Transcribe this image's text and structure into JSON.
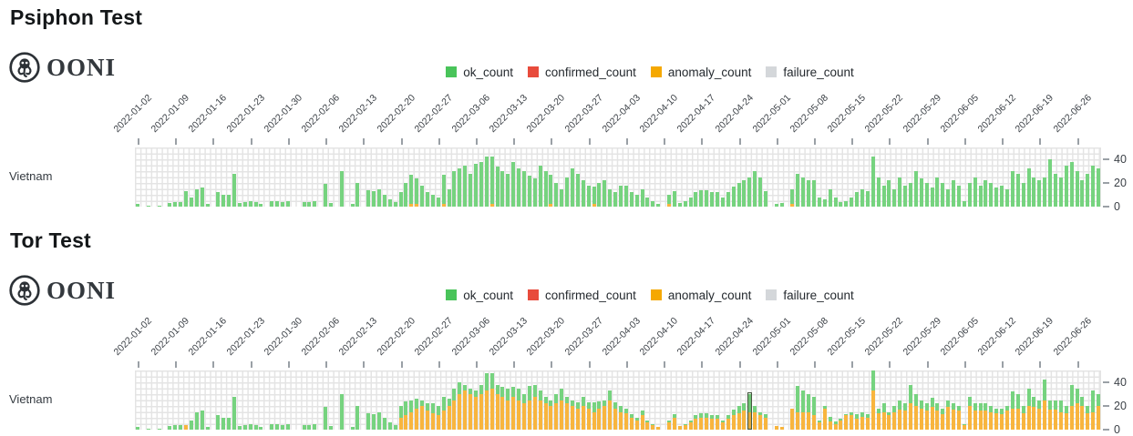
{
  "logo": {
    "text": "OONI",
    "icon": "ooni-octopus-icon"
  },
  "sections": [
    {
      "title": "Psiphon Test",
      "row_label": "Vietnam"
    },
    {
      "title": "Tor Test",
      "row_label": "Vietnam"
    }
  ],
  "legend": {
    "items": [
      {
        "label": "ok_count",
        "color": "#49c45a"
      },
      {
        "label": "confirmed_count",
        "color": "#e84b3c"
      },
      {
        "label": "anomaly_count",
        "color": "#f5a800"
      },
      {
        "label": "failure_count",
        "color": "#d4d7da"
      }
    ]
  },
  "chart_data": [
    {
      "type": "bar",
      "stacked": true,
      "stack_order": "bottom-to-top",
      "title": "Psiphon Test",
      "row_label": "Vietnam",
      "x_unit": "day",
      "x_range": [
        "2022-01-02",
        "2022-06-30"
      ],
      "x_tick_labels": [
        "2022-01-02",
        "2022-01-09",
        "2022-01-16",
        "2022-01-23",
        "2022-01-30",
        "2022-02-06",
        "2022-02-13",
        "2022-02-20",
        "2022-02-27",
        "2022-03-06",
        "2022-03-13",
        "2022-03-20",
        "2022-03-27",
        "2022-04-03",
        "2022-04-10",
        "2022-04-17",
        "2022-04-24",
        "2022-05-01",
        "2022-05-08",
        "2022-05-15",
        "2022-05-22",
        "2022-05-29",
        "2022-06-05",
        "2022-06-12",
        "2022-06-19",
        "2022-06-26"
      ],
      "y_ticks": [
        0,
        20,
        40
      ],
      "ylim": [
        0,
        50
      ],
      "y_axis_side": "right",
      "x_axis_side": "top",
      "grid": true,
      "notes": "confirmed_count and failure_count series have no visible bars in this chart",
      "series": [
        {
          "name": "anomaly_count",
          "color": "#f8b53e",
          "length": 180,
          "default": 0,
          "points": {
            "51": 2,
            "52": 2,
            "57": 2,
            "66": 2,
            "77": 2,
            "85": 2,
            "99": 2,
            "122": 2
          }
        },
        {
          "name": "ok_count",
          "color": "#76d37f",
          "values": [
            2,
            0,
            1,
            0,
            1,
            0,
            3,
            4,
            4,
            13,
            8,
            15,
            16,
            2,
            0,
            12,
            10,
            10,
            28,
            3,
            4,
            5,
            4,
            2,
            0,
            5,
            5,
            4,
            5,
            0,
            0,
            4,
            4,
            5,
            0,
            19,
            3,
            0,
            30,
            0,
            2,
            20,
            0,
            14,
            13,
            15,
            10,
            6,
            4,
            12,
            20,
            25,
            22,
            18,
            12,
            10,
            8,
            25,
            15,
            30,
            32,
            35,
            28,
            36,
            38,
            42,
            40,
            34,
            30,
            28,
            38,
            32,
            30,
            26,
            24,
            35,
            30,
            25,
            20,
            15,
            25,
            32,
            28,
            22,
            18,
            15,
            20,
            22,
            15,
            12,
            18,
            18,
            12,
            10,
            15,
            8,
            5,
            2,
            0,
            8,
            13,
            3,
            5,
            8,
            12,
            14,
            14,
            12,
            12,
            8,
            12,
            17,
            20,
            22,
            25,
            30,
            25,
            13,
            0,
            2,
            3,
            0,
            13,
            28,
            25,
            22,
            22,
            8,
            6,
            15,
            8,
            4,
            5,
            8,
            12,
            15,
            13,
            42,
            25,
            18,
            22,
            15,
            25,
            18,
            20,
            30,
            24,
            20,
            16,
            25,
            20,
            15,
            22,
            18,
            5,
            20,
            25,
            18,
            22,
            20,
            16,
            18,
            15,
            30,
            28,
            20,
            32,
            25,
            22,
            25,
            40,
            28,
            25,
            35,
            38,
            30,
            22,
            28,
            35,
            32
          ]
        }
      ]
    },
    {
      "type": "bar",
      "stacked": true,
      "stack_order": "bottom-to-top",
      "title": "Tor Test",
      "row_label": "Vietnam",
      "x_unit": "day",
      "x_range": [
        "2022-01-02",
        "2022-06-30"
      ],
      "x_tick_labels": [
        "2022-01-02",
        "2022-01-09",
        "2022-01-16",
        "2022-01-23",
        "2022-01-30",
        "2022-02-06",
        "2022-02-13",
        "2022-02-20",
        "2022-02-27",
        "2022-03-06",
        "2022-03-13",
        "2022-03-20",
        "2022-03-27",
        "2022-04-03",
        "2022-04-10",
        "2022-04-17",
        "2022-04-24",
        "2022-05-01",
        "2022-05-08",
        "2022-05-15",
        "2022-05-22",
        "2022-05-29",
        "2022-06-05",
        "2022-06-12",
        "2022-06-19",
        "2022-06-26"
      ],
      "y_ticks": [
        0,
        20,
        40
      ],
      "ylim": [
        0,
        50
      ],
      "y_axis_side": "right",
      "x_axis_side": "top",
      "grid": true,
      "selected_index": 114,
      "notes": "confirmed_count and failure_count series have no visible bars in this chart; one bar (index 114) is highlighted with a dark outline",
      "series": [
        {
          "name": "anomaly_count",
          "color": "#f8b53e",
          "values": [
            0,
            0,
            0,
            0,
            0,
            0,
            0,
            0,
            0,
            4,
            0,
            0,
            0,
            0,
            0,
            0,
            0,
            0,
            0,
            0,
            0,
            0,
            0,
            0,
            0,
            0,
            0,
            0,
            0,
            0,
            0,
            0,
            0,
            0,
            0,
            0,
            0,
            0,
            0,
            0,
            0,
            0,
            0,
            0,
            0,
            0,
            0,
            0,
            0,
            10,
            12,
            15,
            18,
            20,
            16,
            14,
            12,
            16,
            20,
            25,
            30,
            33,
            30,
            28,
            30,
            33,
            35,
            30,
            28,
            25,
            28,
            25,
            22,
            25,
            28,
            25,
            22,
            20,
            22,
            25,
            22,
            20,
            18,
            20,
            18,
            15,
            18,
            20,
            25,
            18,
            15,
            14,
            10,
            8,
            12,
            6,
            4,
            2,
            0,
            6,
            10,
            3,
            4,
            6,
            9,
            10,
            10,
            9,
            9,
            6,
            9,
            12,
            14,
            16,
            15,
            15,
            12,
            10,
            0,
            3,
            2,
            0,
            18,
            15,
            15,
            15,
            12,
            6,
            18,
            7,
            5,
            8,
            12,
            12,
            9,
            11,
            10,
            33,
            14,
            15,
            12,
            15,
            17,
            16,
            22,
            20,
            18,
            16,
            19,
            16,
            13,
            19,
            17,
            16,
            4,
            20,
            16,
            16,
            16,
            15,
            14,
            13,
            16,
            18,
            18,
            14,
            20,
            19,
            18,
            25,
            17,
            17,
            15,
            14,
            20,
            22,
            20,
            14,
            15,
            20
          ]
        },
        {
          "name": "ok_count",
          "color": "#76d37f",
          "values": [
            2,
            0,
            1,
            0,
            1,
            0,
            3,
            4,
            4,
            0,
            8,
            15,
            16,
            2,
            0,
            12,
            10,
            10,
            28,
            3,
            4,
            5,
            4,
            2,
            0,
            5,
            5,
            4,
            5,
            0,
            0,
            4,
            4,
            5,
            0,
            19,
            3,
            0,
            30,
            0,
            2,
            20,
            0,
            14,
            13,
            15,
            10,
            6,
            4,
            10,
            12,
            10,
            8,
            5,
            6,
            8,
            8,
            12,
            6,
            10,
            10,
            5,
            5,
            5,
            8,
            15,
            13,
            8,
            8,
            10,
            8,
            10,
            8,
            12,
            10,
            8,
            6,
            5,
            8,
            10,
            6,
            5,
            5,
            8,
            5,
            8,
            6,
            5,
            8,
            5,
            5,
            4,
            3,
            2,
            4,
            2,
            1,
            0,
            0,
            2,
            3,
            0,
            1,
            2,
            3,
            4,
            4,
            3,
            3,
            2,
            3,
            5,
            6,
            6,
            15,
            5,
            3,
            3,
            0,
            0,
            0,
            0,
            0,
            22,
            18,
            15,
            16,
            2,
            2,
            4,
            2,
            1,
            1,
            3,
            4,
            4,
            3,
            17,
            4,
            7,
            3,
            5,
            8,
            6,
            16,
            10,
            7,
            6,
            8,
            6,
            5,
            6,
            5,
            4,
            1,
            8,
            6,
            6,
            6,
            5,
            4,
            5,
            4,
            14,
            12,
            6,
            15,
            9,
            7,
            17,
            8,
            8,
            10,
            6,
            18,
            13,
            8,
            6,
            18,
            10
          ]
        }
      ]
    }
  ]
}
